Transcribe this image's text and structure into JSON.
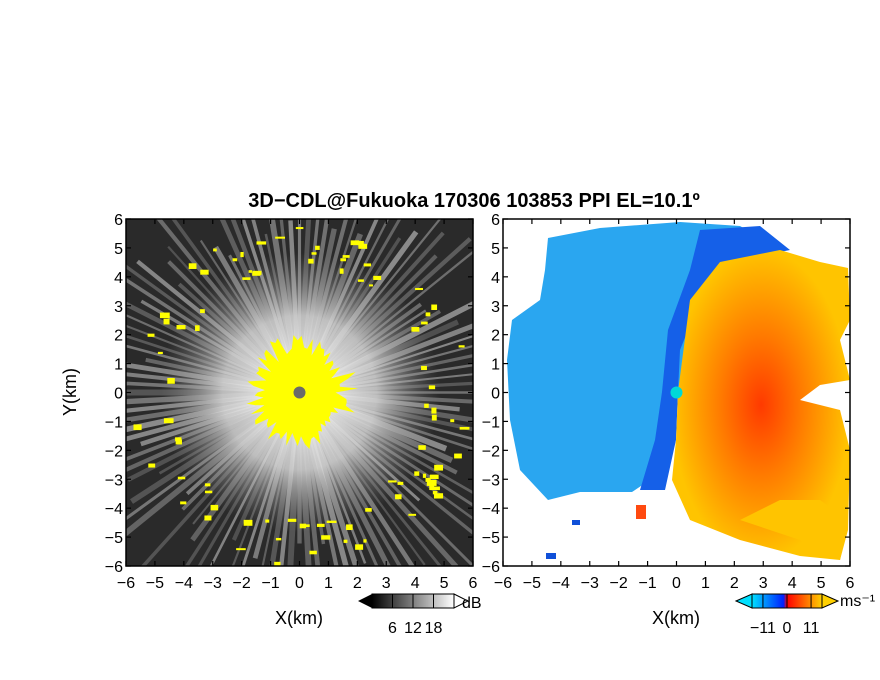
{
  "title": "3D−CDL@Fukuoka 170306 103853 PPI EL=10.1º",
  "chart_data": [
    {
      "type": "heatmap",
      "panel": "left",
      "quantity": "signal-to-noise ratio",
      "xlabel": "X(km)",
      "ylabel": "Y(km)",
      "xlim": [
        -6,
        6
      ],
      "ylim": [
        -6,
        6
      ],
      "xticks": [
        "−6",
        "−5",
        "−4",
        "−3",
        "−2",
        "−1",
        "0",
        "1",
        "2",
        "3",
        "4",
        "5",
        "6"
      ],
      "yticks": [
        "−6",
        "−5",
        "−4",
        "−3",
        "−2",
        "−1",
        "0",
        "1",
        "2",
        "3",
        "4",
        "5",
        "6"
      ],
      "colorbar": {
        "unit": "dB",
        "ticks": [
          "6",
          "12",
          "18"
        ],
        "tick_values": [
          6,
          12,
          18
        ],
        "range": [
          0,
          24
        ],
        "colors": [
          "#000000",
          "#ffffff"
        ]
      },
      "features": {
        "radar_center": [
          0,
          0
        ],
        "saturated_core_radius_km": 1.6,
        "saturated_color": "#ffff00",
        "outer_edge_radius_km": 5.5
      }
    },
    {
      "type": "heatmap",
      "panel": "right",
      "quantity": "Doppler velocity",
      "xlabel": "X(km)",
      "ylabel": "",
      "xlim": [
        -6,
        6
      ],
      "ylim": [
        -6,
        6
      ],
      "xticks": [
        "−6",
        "−5",
        "−4",
        "−3",
        "−2",
        "−1",
        "0",
        "1",
        "2",
        "3",
        "4",
        "5",
        "6"
      ],
      "yticks": [
        "−6",
        "−5",
        "−4",
        "−3",
        "−2",
        "−1",
        "0",
        "1",
        "2",
        "3",
        "4",
        "5",
        "6"
      ],
      "colorbar": {
        "unit": "ms⁻¹",
        "ticks": [
          "−11",
          "0",
          "11"
        ],
        "tick_values": [
          -11,
          0,
          11
        ],
        "range": [
          -16,
          16
        ],
        "colors": [
          "#00e0ff",
          "#0000ff",
          "#ff0000",
          "#ffd000"
        ]
      },
      "features": {
        "radar_center": [
          0,
          0
        ],
        "center_color": "#00d8d8",
        "negative_side": "west",
        "positive_side": "east"
      }
    }
  ]
}
